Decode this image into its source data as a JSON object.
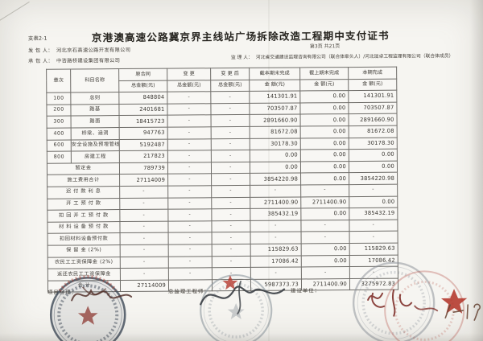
{
  "meta": {
    "form_code": "支表2-1",
    "title": "京港澳高速公路冀京界主线站广场拆除改造工程期中支付证书",
    "page_info": "第3页  共21页",
    "employer_label": "发 包 人：",
    "employer": "河北京石高速公路开发有限公司",
    "contractor_label": "承 包 人：",
    "contractor": "中咨路桥建设集团有限公司",
    "supervisor_label": "监 理 人：",
    "supervisor": "河北省交通建设监理咨询有限公司（联合体牵头人）/河北珑卓工程监理有限公司（联合体成员）"
  },
  "table": {
    "headers": {
      "chapter": "章次",
      "subject": "科目名称",
      "orig_contract": "原合同",
      "change": "变  更",
      "after_change": "变 更 后",
      "cum_this_period_end": "截本期末完成",
      "cum_last_period_end": "截上期末完成",
      "this_period": "本期完成",
      "amount_total": "总金额(元)",
      "amount": "金  额(元)"
    },
    "rows": [
      [
        "100",
        "总则",
        "848804",
        "-",
        "-",
        "141301.91",
        "0.00",
        "141301.91"
      ],
      [
        "200",
        "路基",
        "2401681",
        "-",
        "-",
        "703507.87",
        "0.00",
        "703507.87"
      ],
      [
        "300",
        "路面",
        "18415723",
        "-",
        "-",
        "2891660.90",
        "0.00",
        "2891660.90"
      ],
      [
        "400",
        "桥梁、涵洞",
        "947763",
        "-",
        "-",
        "81672.08",
        "0.00",
        "81672.08"
      ],
      [
        "600",
        "安全设施及预埋管线",
        "5192487",
        "-",
        "-",
        "30178.30",
        "0.00",
        "30178.30"
      ],
      [
        "800",
        "房建工程",
        "217823",
        "-",
        "-",
        "0.00",
        "0.00",
        "0.00"
      ],
      [
        "",
        "暂定金",
        "789739",
        "-",
        "-",
        "0.00",
        "0.00",
        "0.00"
      ],
      [
        "",
        "施工费用合计",
        "27114009",
        "-",
        "-",
        "3854220.98",
        "0.00",
        "3854220.98"
      ],
      [
        "",
        "迟 付 款 利 息",
        "-",
        "-",
        "-",
        "-",
        "-",
        "-"
      ],
      [
        "",
        "开 工 预 付 款",
        "-",
        "-",
        "-",
        "2711400.90",
        "2711400.90",
        "0.00"
      ],
      [
        "",
        "扣 回 开 工 预 付 款",
        "-",
        "-",
        "-",
        "385432.19",
        "0.00",
        "385432.19"
      ],
      [
        "",
        "材 料 设 备 预 付 款",
        "-",
        "-",
        "-",
        "-",
        "-",
        "-"
      ],
      [
        "",
        "扣回材料设备预付款",
        "-",
        "-",
        "-",
        "-",
        "-",
        "-"
      ],
      [
        "",
        "保  留  金 (2%)",
        "-",
        "-",
        "-",
        "115829.63",
        "0.00",
        "115829.63"
      ],
      [
        "",
        "农民工工资保障金 (2%)",
        "-",
        "-",
        "-",
        "17086.42",
        "0.00",
        "17086.42"
      ],
      [
        "",
        "返还农民工工资保障金",
        "-",
        "-",
        "-",
        "-",
        "-",
        "-"
      ],
      [
        "",
        "合  计",
        "27114009",
        "",
        "",
        "5987373.73",
        "2711400.90",
        "3275972.83"
      ]
    ]
  },
  "signatures": {
    "project_manager_label": "项目经理：",
    "chief_supervisor_label": "总监理工程师：",
    "client_label": "建设单位：",
    "handwritten_date": "-19"
  },
  "icons": {
    "left_stamp": "round-seal-icon",
    "center_stamp": "round-seal-icon",
    "right_stamp": "round-seal-icon",
    "red_star": "star-icon"
  }
}
